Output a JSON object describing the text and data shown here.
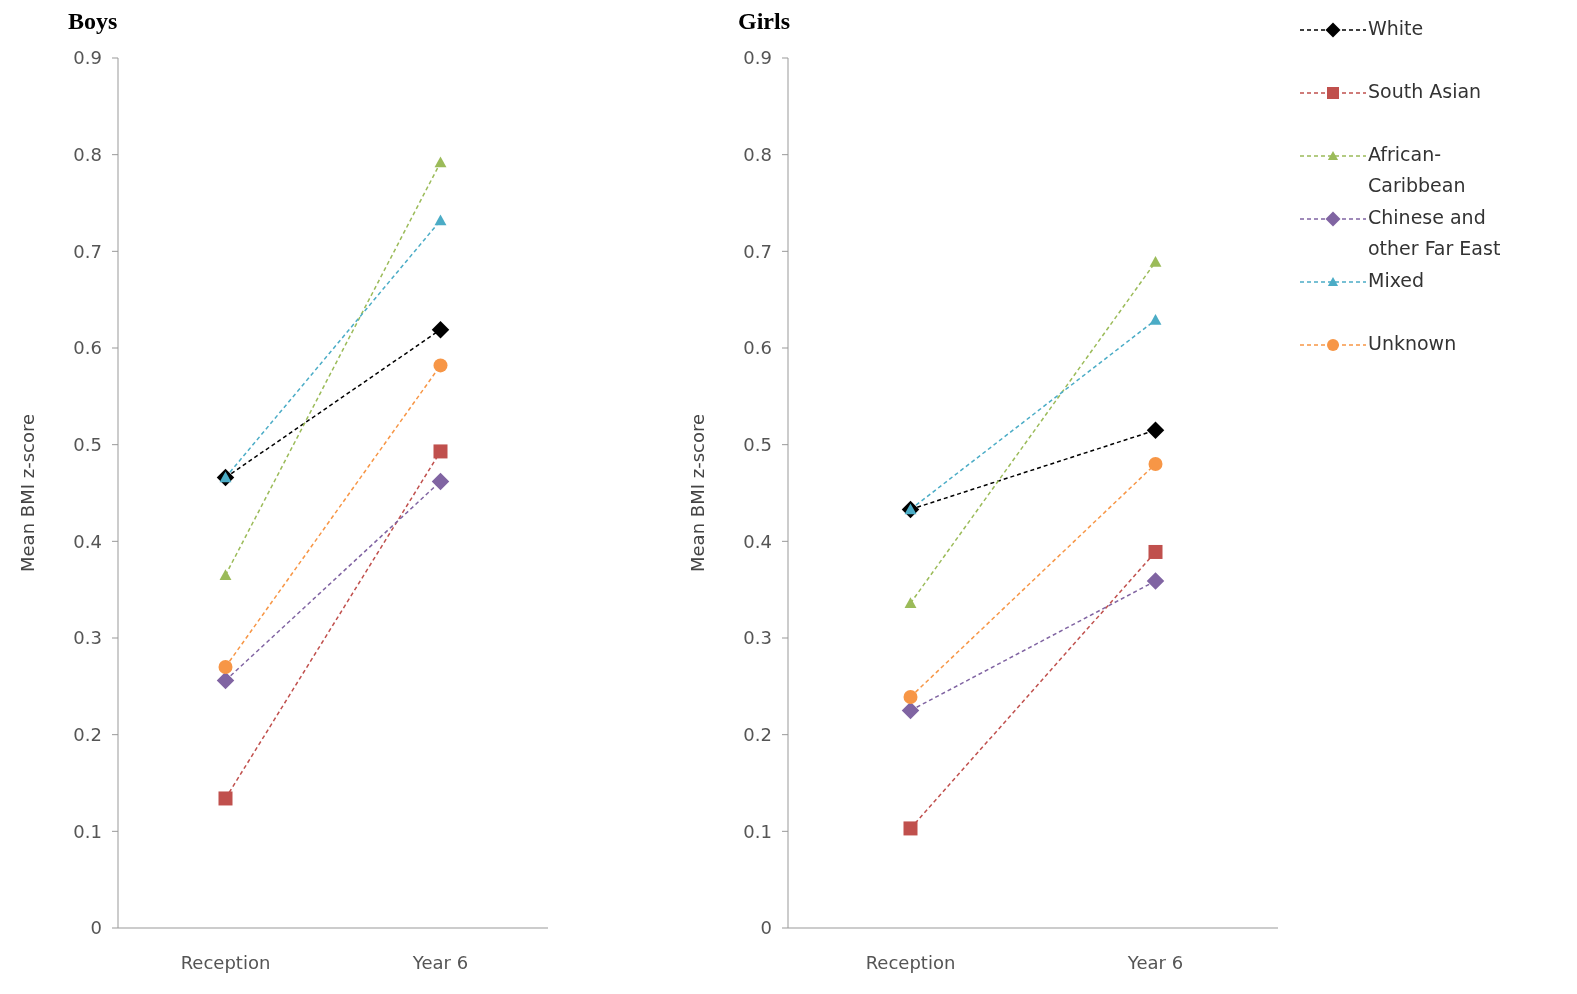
{
  "chart_data": [
    {
      "type": "line",
      "title": "Boys",
      "ylabel": "Mean BMI z-score",
      "categories": [
        "Reception",
        "Year 6"
      ],
      "ylim": [
        0,
        0.9
      ],
      "yticks": [
        0,
        0.1,
        0.2,
        0.3,
        0.4,
        0.5,
        0.6,
        0.7,
        0.8,
        0.9
      ],
      "grid": false,
      "legend": false,
      "line_style": "dashed",
      "series": [
        {
          "color": "#000000",
          "marker": "diamond",
          "values": [
            0.466,
            0.619
          ]
        },
        {
          "color": "#c0504d",
          "marker": "square",
          "values": [
            0.134,
            0.493
          ]
        },
        {
          "color": "#9bbb59",
          "marker": "triangle",
          "values": [
            0.365,
            0.792
          ]
        },
        {
          "color": "#8064a2",
          "marker": "diamond",
          "values": [
            0.256,
            0.462
          ]
        },
        {
          "color": "#4bacc6",
          "marker": "triangle",
          "values": [
            0.466,
            0.732
          ]
        },
        {
          "color": "#f79646",
          "marker": "circle",
          "values": [
            0.27,
            0.582
          ]
        }
      ]
    },
    {
      "type": "line",
      "title": "Girls",
      "ylabel": "Mean BMI z-score",
      "categories": [
        "Reception",
        "Year 6"
      ],
      "ylim": [
        0,
        0.9
      ],
      "yticks": [
        0,
        0.1,
        0.2,
        0.3,
        0.4,
        0.5,
        0.6,
        0.7,
        0.8,
        0.9
      ],
      "grid": false,
      "legend": "right",
      "line_style": "dashed",
      "series": [
        {
          "name": "White",
          "color": "#000000",
          "marker": "diamond",
          "values": [
            0.433,
            0.515
          ]
        },
        {
          "name": "South Asian",
          "color": "#c0504d",
          "marker": "square",
          "values": [
            0.103,
            0.389
          ]
        },
        {
          "name": "African-Caribbean",
          "color": "#9bbb59",
          "marker": "triangle",
          "values": [
            0.336,
            0.689
          ]
        },
        {
          "name": "Chinese and other Far East",
          "color": "#8064a2",
          "marker": "diamond",
          "values": [
            0.225,
            0.359
          ]
        },
        {
          "name": "Mixed",
          "color": "#4bacc6",
          "marker": "triangle",
          "values": [
            0.433,
            0.629
          ]
        },
        {
          "name": "Unknown",
          "color": "#f79646",
          "marker": "circle",
          "values": [
            0.239,
            0.48
          ]
        }
      ]
    }
  ]
}
